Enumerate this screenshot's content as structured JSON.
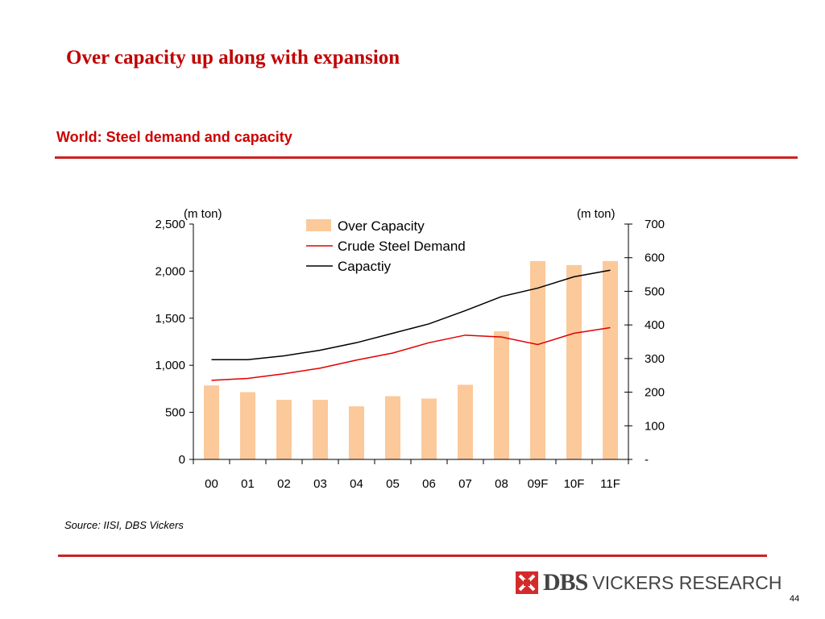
{
  "slide": {
    "title": "Over capacity up along with expansion",
    "page_number": "44"
  },
  "source": "Source: IISI, DBS Vickers",
  "logo": {
    "dbs": "DBS",
    "rest": "VICKERS RESEARCH"
  },
  "colors": {
    "accent": "#cc0000",
    "bar": "#fcc99a",
    "demand_line": "#e00000",
    "capacity_line": "#000000"
  },
  "chart_data": {
    "type": "bar",
    "title": "World: Steel demand and capacity",
    "categories": [
      "00",
      "01",
      "02",
      "03",
      "04",
      "05",
      "06",
      "07",
      "08",
      "09F",
      "10F",
      "11F"
    ],
    "y_left": {
      "unit": "(m ton)",
      "lim": [
        0,
        2500
      ],
      "ticks": [
        0,
        500,
        1000,
        1500,
        2000,
        2500
      ],
      "tick_labels": [
        "0",
        "500",
        "1,000",
        "1,500",
        "2,000",
        "2,500"
      ]
    },
    "y_right": {
      "unit": "(m ton)",
      "lim": [
        0,
        700
      ],
      "ticks": [
        0,
        100,
        200,
        300,
        400,
        500,
        600,
        700
      ],
      "tick_labels": [
        "-",
        "100",
        "200",
        "300",
        "400",
        "500",
        "600",
        "700"
      ]
    },
    "series": [
      {
        "name": "Over Capacity",
        "type": "bar",
        "axis": "right",
        "values": [
          220,
          200,
          177,
          177,
          158,
          188,
          181,
          222,
          381,
          590,
          578,
          590
        ]
      },
      {
        "name": "Crude Steel Demand",
        "type": "line",
        "axis": "left",
        "values": [
          840,
          860,
          910,
          970,
          1055,
          1130,
          1240,
          1320,
          1300,
          1220,
          1340,
          1400
        ]
      },
      {
        "name": "Capactiy",
        "type": "line",
        "axis": "left",
        "values": [
          1060,
          1060,
          1100,
          1160,
          1240,
          1340,
          1440,
          1580,
          1730,
          1820,
          1940,
          2010
        ]
      }
    ],
    "legend_position": "top-center",
    "grid": false
  }
}
